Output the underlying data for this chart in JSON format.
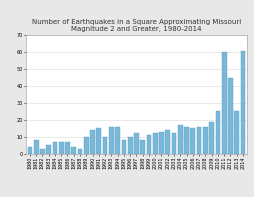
{
  "title_line1": "Number of Earthquakes in a Square Approximating Missouri",
  "title_line2": "Magnitude 2 and Greater, 1980-2014",
  "bar_color": "#7ab8d9",
  "bar_edge_color": "#5a9ec0",
  "background_color": "#ffffff",
  "plot_bg_color": "#ffffff",
  "years": [
    1980,
    1981,
    1982,
    1983,
    1984,
    1985,
    1986,
    1987,
    1988,
    1989,
    1990,
    1991,
    1992,
    1993,
    1994,
    1995,
    1996,
    1997,
    1998,
    1999,
    2000,
    2001,
    2002,
    2003,
    2004,
    2005,
    2006,
    2007,
    2008,
    2009,
    2010,
    2011,
    2012,
    2013,
    2014
  ],
  "values": [
    4,
    8,
    3,
    5,
    7,
    7,
    7,
    4,
    3,
    10,
    14,
    15,
    10,
    16,
    16,
    8,
    10,
    12,
    8,
    11,
    12,
    13,
    14,
    12,
    17,
    16,
    15,
    16,
    16,
    19,
    25,
    60,
    45,
    25,
    61
  ],
  "ylim": [
    0,
    70
  ],
  "yticks": [
    0,
    10,
    20,
    30,
    40,
    50,
    60,
    70
  ],
  "title_fontsize": 5.0,
  "tick_fontsize": 3.5,
  "grid_color": "#d8d8d8",
  "outer_bg": "#e8e8e8"
}
